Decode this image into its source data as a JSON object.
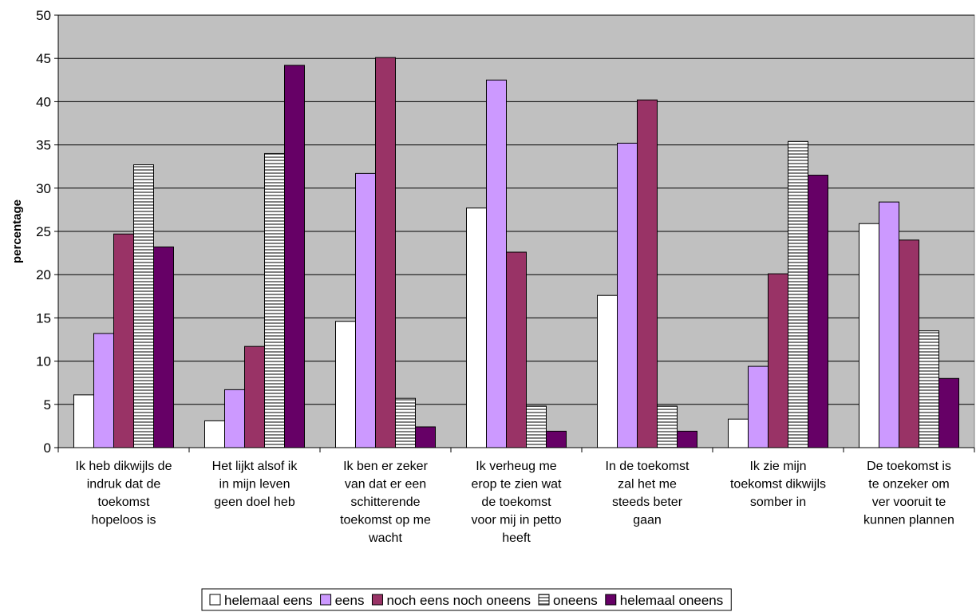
{
  "chart_data": {
    "type": "bar",
    "title": "",
    "xlabel": "",
    "ylabel": "percentage",
    "ylim": [
      0,
      50
    ],
    "ytick_step": 5,
    "grid": true,
    "legend_position": "bottom",
    "plot_background": "#c0c0c0",
    "categories": [
      [
        "Ik heb dikwijls de",
        "indruk dat de",
        "toekomst",
        "hopeloos is"
      ],
      [
        "Het lijkt alsof ik",
        "in mijn leven",
        "geen doel heb"
      ],
      [
        "Ik ben er zeker",
        "van dat er een",
        "schitterende",
        "toekomst op me",
        "wacht"
      ],
      [
        "Ik verheug me",
        "erop te zien wat",
        "de toekomst",
        "voor mij in petto",
        "heeft"
      ],
      [
        "In de toekomst",
        "zal het me",
        "steeds beter",
        "gaan"
      ],
      [
        "Ik zie mijn",
        "toekomst dikwijls",
        "somber in"
      ],
      [
        "De toekomst is",
        "te onzeker om",
        "ver vooruit te",
        "kunnen plannen"
      ]
    ],
    "series": [
      {
        "name": "helemaal eens",
        "color": "#ffffff",
        "pattern": "solid",
        "values": [
          6.1,
          3.1,
          14.6,
          27.7,
          17.6,
          3.3,
          25.9
        ]
      },
      {
        "name": "eens",
        "color": "#cc99ff",
        "pattern": "solid",
        "values": [
          13.2,
          6.7,
          31.7,
          42.5,
          35.2,
          9.4,
          28.4
        ]
      },
      {
        "name": "noch eens noch oneens",
        "color": "#993366",
        "pattern": "solid",
        "values": [
          24.7,
          11.7,
          45.1,
          22.6,
          40.2,
          20.1,
          24.0
        ]
      },
      {
        "name": "oneens",
        "color": "#ffffff",
        "pattern": "horizontal-stripes",
        "values": [
          32.7,
          34.0,
          5.7,
          4.8,
          4.8,
          35.4,
          13.5
        ]
      },
      {
        "name": "helemaal oneens",
        "color": "#660066",
        "pattern": "solid",
        "values": [
          23.2,
          44.2,
          2.4,
          1.9,
          1.9,
          31.5,
          8.0
        ]
      }
    ]
  }
}
